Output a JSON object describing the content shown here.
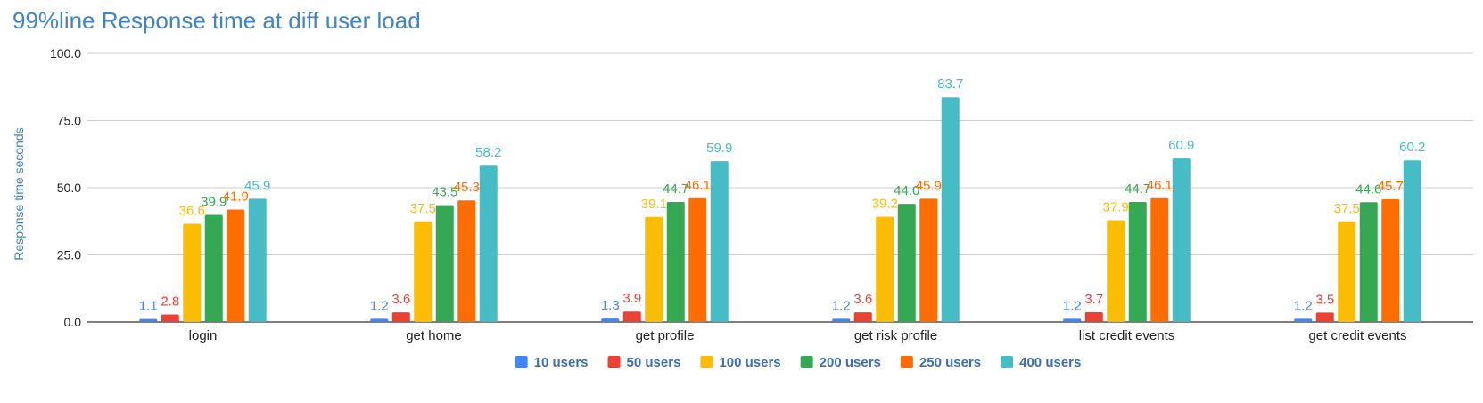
{
  "chart_data": {
    "type": "bar",
    "title": "99%line Response time at diff user load",
    "xlabel": "",
    "ylabel": "Response time seconds",
    "ylim": [
      0,
      100
    ],
    "yticks": [
      "0.0",
      "25.0",
      "50.0",
      "75.0",
      "100.0"
    ],
    "grid": true,
    "legend_position": "bottom",
    "categories": [
      "login",
      "get home",
      "get profile",
      "get risk profile",
      "list credit events",
      "get credit events"
    ],
    "series": [
      {
        "name": "10 users",
        "color": "#4285f4",
        "values": [
          1.1,
          1.2,
          1.3,
          1.2,
          1.2,
          1.2
        ]
      },
      {
        "name": "50 users",
        "color": "#ea4335",
        "values": [
          2.8,
          3.6,
          3.9,
          3.6,
          3.7,
          3.5
        ]
      },
      {
        "name": "100 users",
        "color": "#fbbc04",
        "values": [
          36.6,
          37.5,
          39.1,
          39.2,
          37.9,
          37.5
        ]
      },
      {
        "name": "200 users",
        "color": "#34a853",
        "values": [
          39.9,
          43.5,
          44.7,
          44.0,
          44.7,
          44.6
        ]
      },
      {
        "name": "250 users",
        "color": "#ff6d01",
        "values": [
          41.9,
          45.3,
          46.1,
          45.9,
          46.1,
          45.7
        ]
      },
      {
        "name": "400 users",
        "color": "#46bdc6",
        "values": [
          45.9,
          58.2,
          59.9,
          83.7,
          60.9,
          60.2
        ]
      }
    ]
  }
}
